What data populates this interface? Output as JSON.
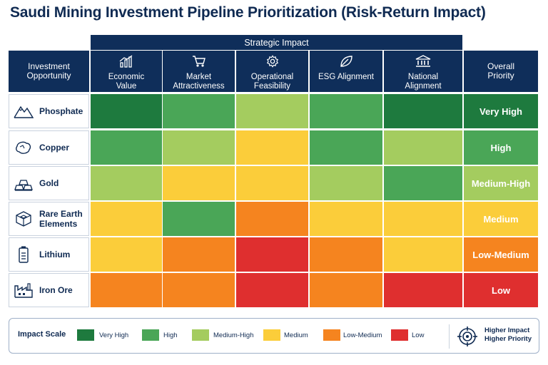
{
  "title": "Saudi Mining Investment Pipeline Prioritization (Risk-Return Impact)",
  "header": {
    "group_label": "Strategic Impact",
    "row_header": "Investment Opportunity",
    "priority_header": "Overall Priority"
  },
  "chart_data": {
    "type": "heatmap",
    "title": "Saudi Mining Investment Pipeline Prioritization (Risk-Return Impact)",
    "columns": [
      {
        "label": "Economic Value",
        "icon": "bar-chart-icon"
      },
      {
        "label": "Market Attractiveness",
        "icon": "cart-icon"
      },
      {
        "label": "Operational Feasibility",
        "icon": "gear-icon"
      },
      {
        "label": "ESG Alignment",
        "icon": "leaf-icon"
      },
      {
        "label": "National Alignment",
        "icon": "institution-icon"
      }
    ],
    "rows": [
      {
        "label": "Phosphate",
        "icon": "mountain-icon",
        "values": [
          "Very High",
          "High",
          "Medium-High",
          "High",
          "Very High"
        ],
        "priority": "Very High"
      },
      {
        "label": "Copper",
        "icon": "ore-nugget-icon",
        "values": [
          "High",
          "Medium-High",
          "Medium",
          "High",
          "Medium-High"
        ],
        "priority": "High"
      },
      {
        "label": "Gold",
        "icon": "gold-bars-icon",
        "values": [
          "Medium-High",
          "Medium",
          "Medium",
          "Medium-High",
          "High"
        ],
        "priority": "Medium-High"
      },
      {
        "label": "Rare Earth Elements",
        "icon": "cube-icon",
        "values": [
          "Medium",
          "High",
          "Low-Medium",
          "Medium",
          "Medium"
        ],
        "priority": "Medium"
      },
      {
        "label": "Lithium",
        "icon": "battery-icon",
        "values": [
          "Medium",
          "Low-Medium",
          "Low",
          "Low-Medium",
          "Medium"
        ],
        "priority": "Low-Medium"
      },
      {
        "label": "Iron Ore",
        "icon": "factory-icon",
        "values": [
          "Low-Medium",
          "Low-Medium",
          "Low",
          "Low-Medium",
          "Low"
        ],
        "priority": "Low"
      }
    ],
    "scale": [
      {
        "label": "Very High",
        "color": "#1e7a3e"
      },
      {
        "label": "High",
        "color": "#4aa657"
      },
      {
        "label": "Medium-High",
        "color": "#a4cc5f"
      },
      {
        "label": "Medium",
        "color": "#fbcd3a"
      },
      {
        "label": "Low-Medium",
        "color": "#f5841f"
      },
      {
        "label": "Low",
        "color": "#df2f2f"
      }
    ]
  },
  "legend": {
    "title": "Impact Scale",
    "note_line1": "Higher Impact",
    "note_line2": "Higher Priority",
    "note_icon": "target-icon"
  }
}
